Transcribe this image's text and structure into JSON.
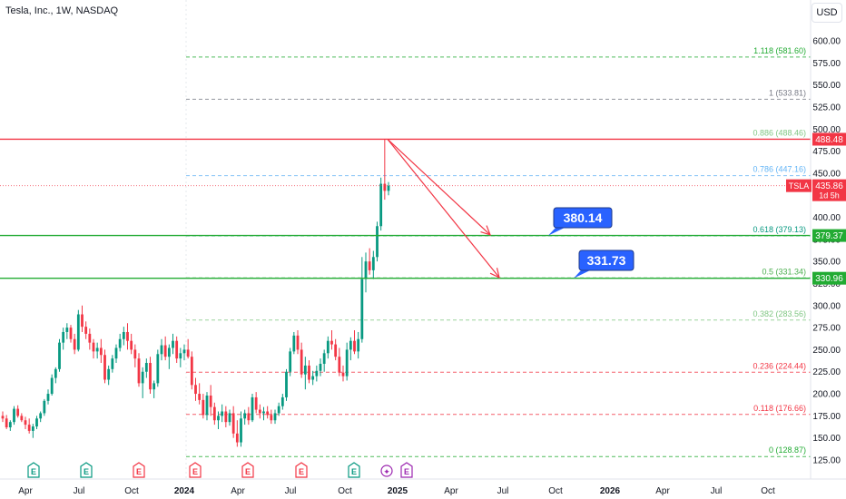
{
  "header": {
    "title": "Tesla, Inc., 1W, NASDAQ"
  },
  "currency": "USD",
  "colors": {
    "up": "#089981",
    "down": "#f23645",
    "accent": "#2962ff",
    "green_line": "#22ab33"
  },
  "chart_data": {
    "type": "candlestick",
    "title": "Tesla, Inc., 1W, NASDAQ",
    "symbol": "TSLA",
    "last_price": "435.86",
    "countdown": "1d 5h",
    "y_ticks": [
      "600.00",
      "575.00",
      "550.00",
      "525.00",
      "500.00",
      "475.00",
      "450.00",
      "425.00",
      "400.00",
      "375.00",
      "350.00",
      "325.00",
      "300.00",
      "275.00",
      "250.00",
      "225.00",
      "200.00",
      "175.00",
      "150.00",
      "125.00"
    ],
    "ylim": [
      115,
      625
    ],
    "x_ticks": [
      "Apr",
      "Jul",
      "Oct",
      "2024",
      "Apr",
      "Jul",
      "Oct",
      "2025",
      "Apr",
      "Jul",
      "Oct",
      "2026",
      "Apr",
      "Jul",
      "Oct"
    ],
    "fibonacci_levels": [
      {
        "label": "1.118 (581.60)",
        "value": 581.6,
        "color": "#22ab33"
      },
      {
        "label": "1 (533.81)",
        "value": 533.81,
        "color": "#787b86"
      },
      {
        "label": "0.886 (488.46)",
        "value": 488.46,
        "color": "#81c784"
      },
      {
        "label": "0.786 (447.16)",
        "value": 447.16,
        "color": "#64b5f6"
      },
      {
        "label": "0.618 (379.13)",
        "value": 379.13,
        "color": "#089981"
      },
      {
        "label": "0.5 (331.34)",
        "value": 331.34,
        "color": "#4caf50"
      },
      {
        "label": "0.382 (283.56)",
        "value": 283.56,
        "color": "#81c784"
      },
      {
        "label": "0.236 (224.44)",
        "value": 224.44,
        "color": "#f23645"
      },
      {
        "label": "0.118 (176.66)",
        "value": 176.66,
        "color": "#f23645"
      },
      {
        "label": "0 (128.87)",
        "value": 128.87,
        "color": "#22ab33"
      }
    ],
    "horizontal_lines": [
      {
        "value": 488.48,
        "label": "488.48",
        "color": "#f23645"
      },
      {
        "value": 379.37,
        "label": "379.37",
        "color": "#22ab33"
      },
      {
        "value": 330.96,
        "label": "330.96",
        "color": "#22ab33"
      }
    ],
    "targets": [
      {
        "label": "380.14",
        "value": 380.14
      },
      {
        "label": "331.73",
        "value": 331.73
      }
    ],
    "events": [
      "E",
      "E",
      "E",
      "E",
      "E",
      "E",
      "E",
      "✦",
      "E"
    ],
    "candles": [
      [
        175,
        180,
        168,
        172
      ],
      [
        172,
        176,
        160,
        162
      ],
      [
        162,
        170,
        158,
        168
      ],
      [
        168,
        186,
        165,
        183
      ],
      [
        183,
        187,
        173,
        175
      ],
      [
        175,
        178,
        168,
        170
      ],
      [
        170,
        174,
        160,
        165
      ],
      [
        165,
        172,
        155,
        158
      ],
      [
        158,
        166,
        150,
        163
      ],
      [
        163,
        175,
        160,
        172
      ],
      [
        172,
        180,
        168,
        178
      ],
      [
        178,
        194,
        175,
        192
      ],
      [
        192,
        205,
        188,
        200
      ],
      [
        200,
        222,
        198,
        218
      ],
      [
        218,
        230,
        212,
        228
      ],
      [
        228,
        262,
        225,
        258
      ],
      [
        258,
        275,
        250,
        270
      ],
      [
        270,
        280,
        262,
        275
      ],
      [
        275,
        278,
        258,
        262
      ],
      [
        262,
        268,
        245,
        250
      ],
      [
        250,
        295,
        248,
        290
      ],
      [
        290,
        300,
        270,
        276
      ],
      [
        276,
        282,
        262,
        268
      ],
      [
        268,
        274,
        250,
        258
      ],
      [
        258,
        262,
        240,
        248
      ],
      [
        248,
        258,
        240,
        252
      ],
      [
        252,
        262,
        235,
        244
      ],
      [
        244,
        250,
        212,
        216
      ],
      [
        216,
        232,
        210,
        228
      ],
      [
        228,
        244,
        224,
        240
      ],
      [
        240,
        256,
        235,
        252
      ],
      [
        252,
        268,
        248,
        262
      ],
      [
        262,
        276,
        255,
        270
      ],
      [
        270,
        280,
        250,
        260
      ],
      [
        260,
        268,
        245,
        250
      ],
      [
        250,
        256,
        230,
        240
      ],
      [
        240,
        246,
        208,
        212
      ],
      [
        212,
        230,
        195,
        225
      ],
      [
        225,
        240,
        218,
        235
      ],
      [
        235,
        242,
        200,
        205
      ],
      [
        205,
        215,
        195,
        212
      ],
      [
        212,
        250,
        208,
        245
      ],
      [
        245,
        262,
        238,
        255
      ],
      [
        255,
        265,
        238,
        242
      ],
      [
        242,
        256,
        228,
        252
      ],
      [
        252,
        268,
        245,
        260
      ],
      [
        260,
        265,
        235,
        240
      ],
      [
        240,
        252,
        230,
        246
      ],
      [
        246,
        256,
        238,
        250
      ],
      [
        250,
        262,
        240,
        242
      ],
      [
        242,
        248,
        205,
        210
      ],
      [
        210,
        218,
        192,
        200
      ],
      [
        200,
        212,
        188,
        193
      ],
      [
        193,
        200,
        172,
        176
      ],
      [
        176,
        202,
        170,
        198
      ],
      [
        198,
        210,
        175,
        185
      ],
      [
        185,
        190,
        165,
        170
      ],
      [
        170,
        180,
        160,
        175
      ],
      [
        175,
        188,
        168,
        180
      ],
      [
        180,
        186,
        162,
        168
      ],
      [
        168,
        182,
        164,
        178
      ],
      [
        178,
        186,
        150,
        155
      ],
      [
        155,
        170,
        140,
        145
      ],
      [
        145,
        180,
        140,
        172
      ],
      [
        172,
        182,
        165,
        178
      ],
      [
        178,
        185,
        165,
        170
      ],
      [
        170,
        200,
        168,
        196
      ],
      [
        196,
        202,
        178,
        182
      ],
      [
        182,
        188,
        172,
        178
      ],
      [
        178,
        185,
        170,
        180
      ],
      [
        180,
        186,
        172,
        176
      ],
      [
        176,
        182,
        166,
        170
      ],
      [
        170,
        182,
        166,
        178
      ],
      [
        178,
        190,
        175,
        186
      ],
      [
        186,
        200,
        182,
        196
      ],
      [
        196,
        228,
        192,
        225
      ],
      [
        225,
        252,
        220,
        248
      ],
      [
        248,
        270,
        245,
        266
      ],
      [
        266,
        272,
        245,
        250
      ],
      [
        250,
        258,
        218,
        222
      ],
      [
        222,
        242,
        205,
        232
      ],
      [
        232,
        238,
        212,
        216
      ],
      [
        216,
        226,
        210,
        220
      ],
      [
        220,
        232,
        214,
        226
      ],
      [
        226,
        240,
        220,
        234
      ],
      [
        234,
        250,
        225,
        246
      ],
      [
        246,
        265,
        240,
        260
      ],
      [
        260,
        272,
        250,
        256
      ],
      [
        256,
        262,
        238,
        242
      ],
      [
        242,
        252,
        220,
        224
      ],
      [
        224,
        232,
        214,
        220
      ],
      [
        220,
        258,
        215,
        250
      ],
      [
        250,
        264,
        238,
        260
      ],
      [
        260,
        272,
        245,
        248
      ],
      [
        248,
        270,
        240,
        262
      ],
      [
        262,
        355,
        258,
        330
      ],
      [
        330,
        360,
        315,
        350
      ],
      [
        350,
        365,
        335,
        340
      ],
      [
        340,
        362,
        330,
        355
      ],
      [
        355,
        395,
        350,
        390
      ],
      [
        390,
        445,
        385,
        438
      ],
      [
        438,
        488,
        420,
        430
      ],
      [
        430,
        440,
        425,
        435.86
      ]
    ]
  }
}
